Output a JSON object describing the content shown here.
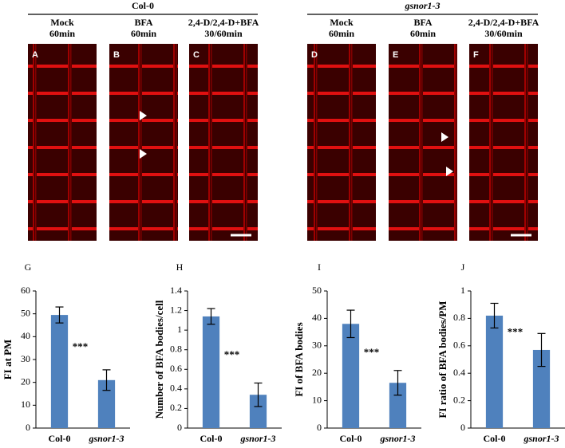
{
  "images": {
    "groups": [
      {
        "title": "Col-0",
        "panels": [
          {
            "letter": "A",
            "lines": [
              "Mock",
              "60min"
            ]
          },
          {
            "letter": "B",
            "lines": [
              "BFA",
              "60min"
            ]
          },
          {
            "letter": "C",
            "lines": [
              "2,4-D/2,4-D+BFA",
              "30/60min"
            ]
          }
        ]
      },
      {
        "title": "gsnor1-3",
        "panels": [
          {
            "letter": "D",
            "lines": [
              "Mock",
              "60min"
            ]
          },
          {
            "letter": "E",
            "lines": [
              "BFA",
              "60min"
            ]
          },
          {
            "letter": "F",
            "lines": [
              "2,4-D/2,4-D+BFA",
              "30/60min"
            ]
          }
        ]
      }
    ]
  },
  "chart_data": [
    {
      "type": "bar",
      "panel": "G",
      "ylabel": "FI at PM",
      "annotation": "***",
      "categories": [
        "Col-0",
        "gsnor1-3"
      ],
      "values": [
        49.5,
        21
      ],
      "errors": [
        3.5,
        4.5
      ],
      "color": "#4f81bd",
      "ylim": [
        0,
        60
      ],
      "yticks": [
        0,
        10,
        20,
        30,
        40,
        50,
        60
      ]
    },
    {
      "type": "bar",
      "panel": "H",
      "ylabel": "Number of BFA bodies/cell",
      "annotation": "***",
      "categories": [
        "Col-0",
        "gsnor1-3"
      ],
      "values": [
        1.14,
        0.34
      ],
      "errors": [
        0.08,
        0.12
      ],
      "color": "#4f81bd",
      "ylim": [
        0,
        1.4
      ],
      "yticks": [
        0,
        0.2,
        0.4,
        0.6,
        0.8,
        1,
        1.2,
        1.4
      ]
    },
    {
      "type": "bar",
      "panel": "I",
      "ylabel": "FI of BFA bodies",
      "annotation": "***",
      "categories": [
        "Col-0",
        "gsnor1-3"
      ],
      "values": [
        38,
        16.5
      ],
      "errors": [
        5,
        4.5
      ],
      "color": "#4f81bd",
      "ylim": [
        0,
        50
      ],
      "yticks": [
        0,
        10,
        20,
        30,
        40,
        50
      ]
    },
    {
      "type": "bar",
      "panel": "J",
      "ylabel": "FI ratio of BFA bodies/PM",
      "annotation": "***",
      "categories": [
        "Col-0",
        "gsnor1-3"
      ],
      "values": [
        0.82,
        0.57
      ],
      "errors": [
        0.09,
        0.12
      ],
      "color": "#4f81bd",
      "ylim": [
        0,
        1
      ],
      "yticks": [
        0,
        0.2,
        0.4,
        0.6,
        0.8,
        1
      ]
    }
  ]
}
